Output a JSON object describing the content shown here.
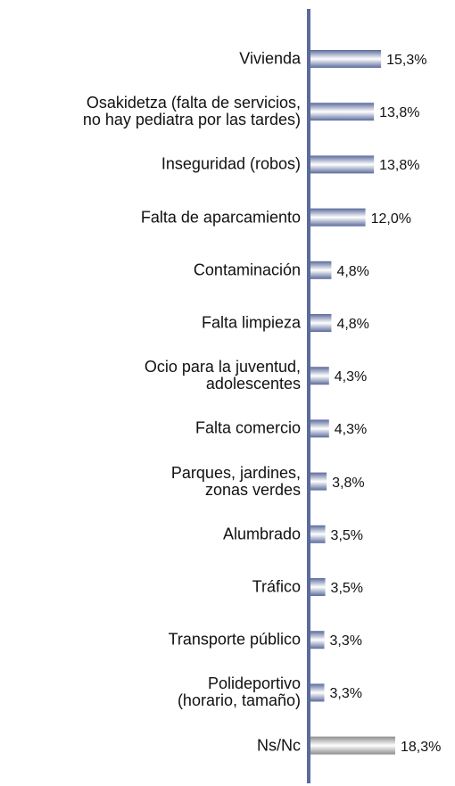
{
  "chart_data": {
    "type": "barh",
    "categories": [
      "Vivienda",
      "Osakidetza (falta de servicios,\nno hay pediatra por las tardes)",
      "Inseguridad (robos)",
      "Falta de aparcamiento",
      "Contaminación",
      "Falta limpieza",
      "Ocio para la juventud,\nadolescentes",
      "Falta comercio",
      "Parques, jardines,\nzonas verdes",
      "Alumbrado",
      "Tráfico",
      "Transporte público",
      "Polideportivo\n(horario, tamaño)",
      "Ns/Nc"
    ],
    "values": [
      15.3,
      13.8,
      13.8,
      12.0,
      4.8,
      4.8,
      4.3,
      4.3,
      3.8,
      3.5,
      3.5,
      3.3,
      3.3,
      18.3
    ],
    "value_labels": [
      "15,3%",
      "13,8%",
      "13,8%",
      "12,0%",
      "4,8%",
      "4,8%",
      "4,3%",
      "4,3%",
      "3,8%",
      "3,5%",
      "3,5%",
      "3,3%",
      "3,3%",
      "18,3%"
    ],
    "colors": [
      "#5b6b9c",
      "#5b6b9c",
      "#5b6b9c",
      "#5b6b9c",
      "#5b6b9c",
      "#5b6b9c",
      "#5b6b9c",
      "#5b6b9c",
      "#5b6b9c",
      "#5b6b9c",
      "#5b6b9c",
      "#5b6b9c",
      "#5b6b9c",
      "#8c8c8c"
    ]
  }
}
